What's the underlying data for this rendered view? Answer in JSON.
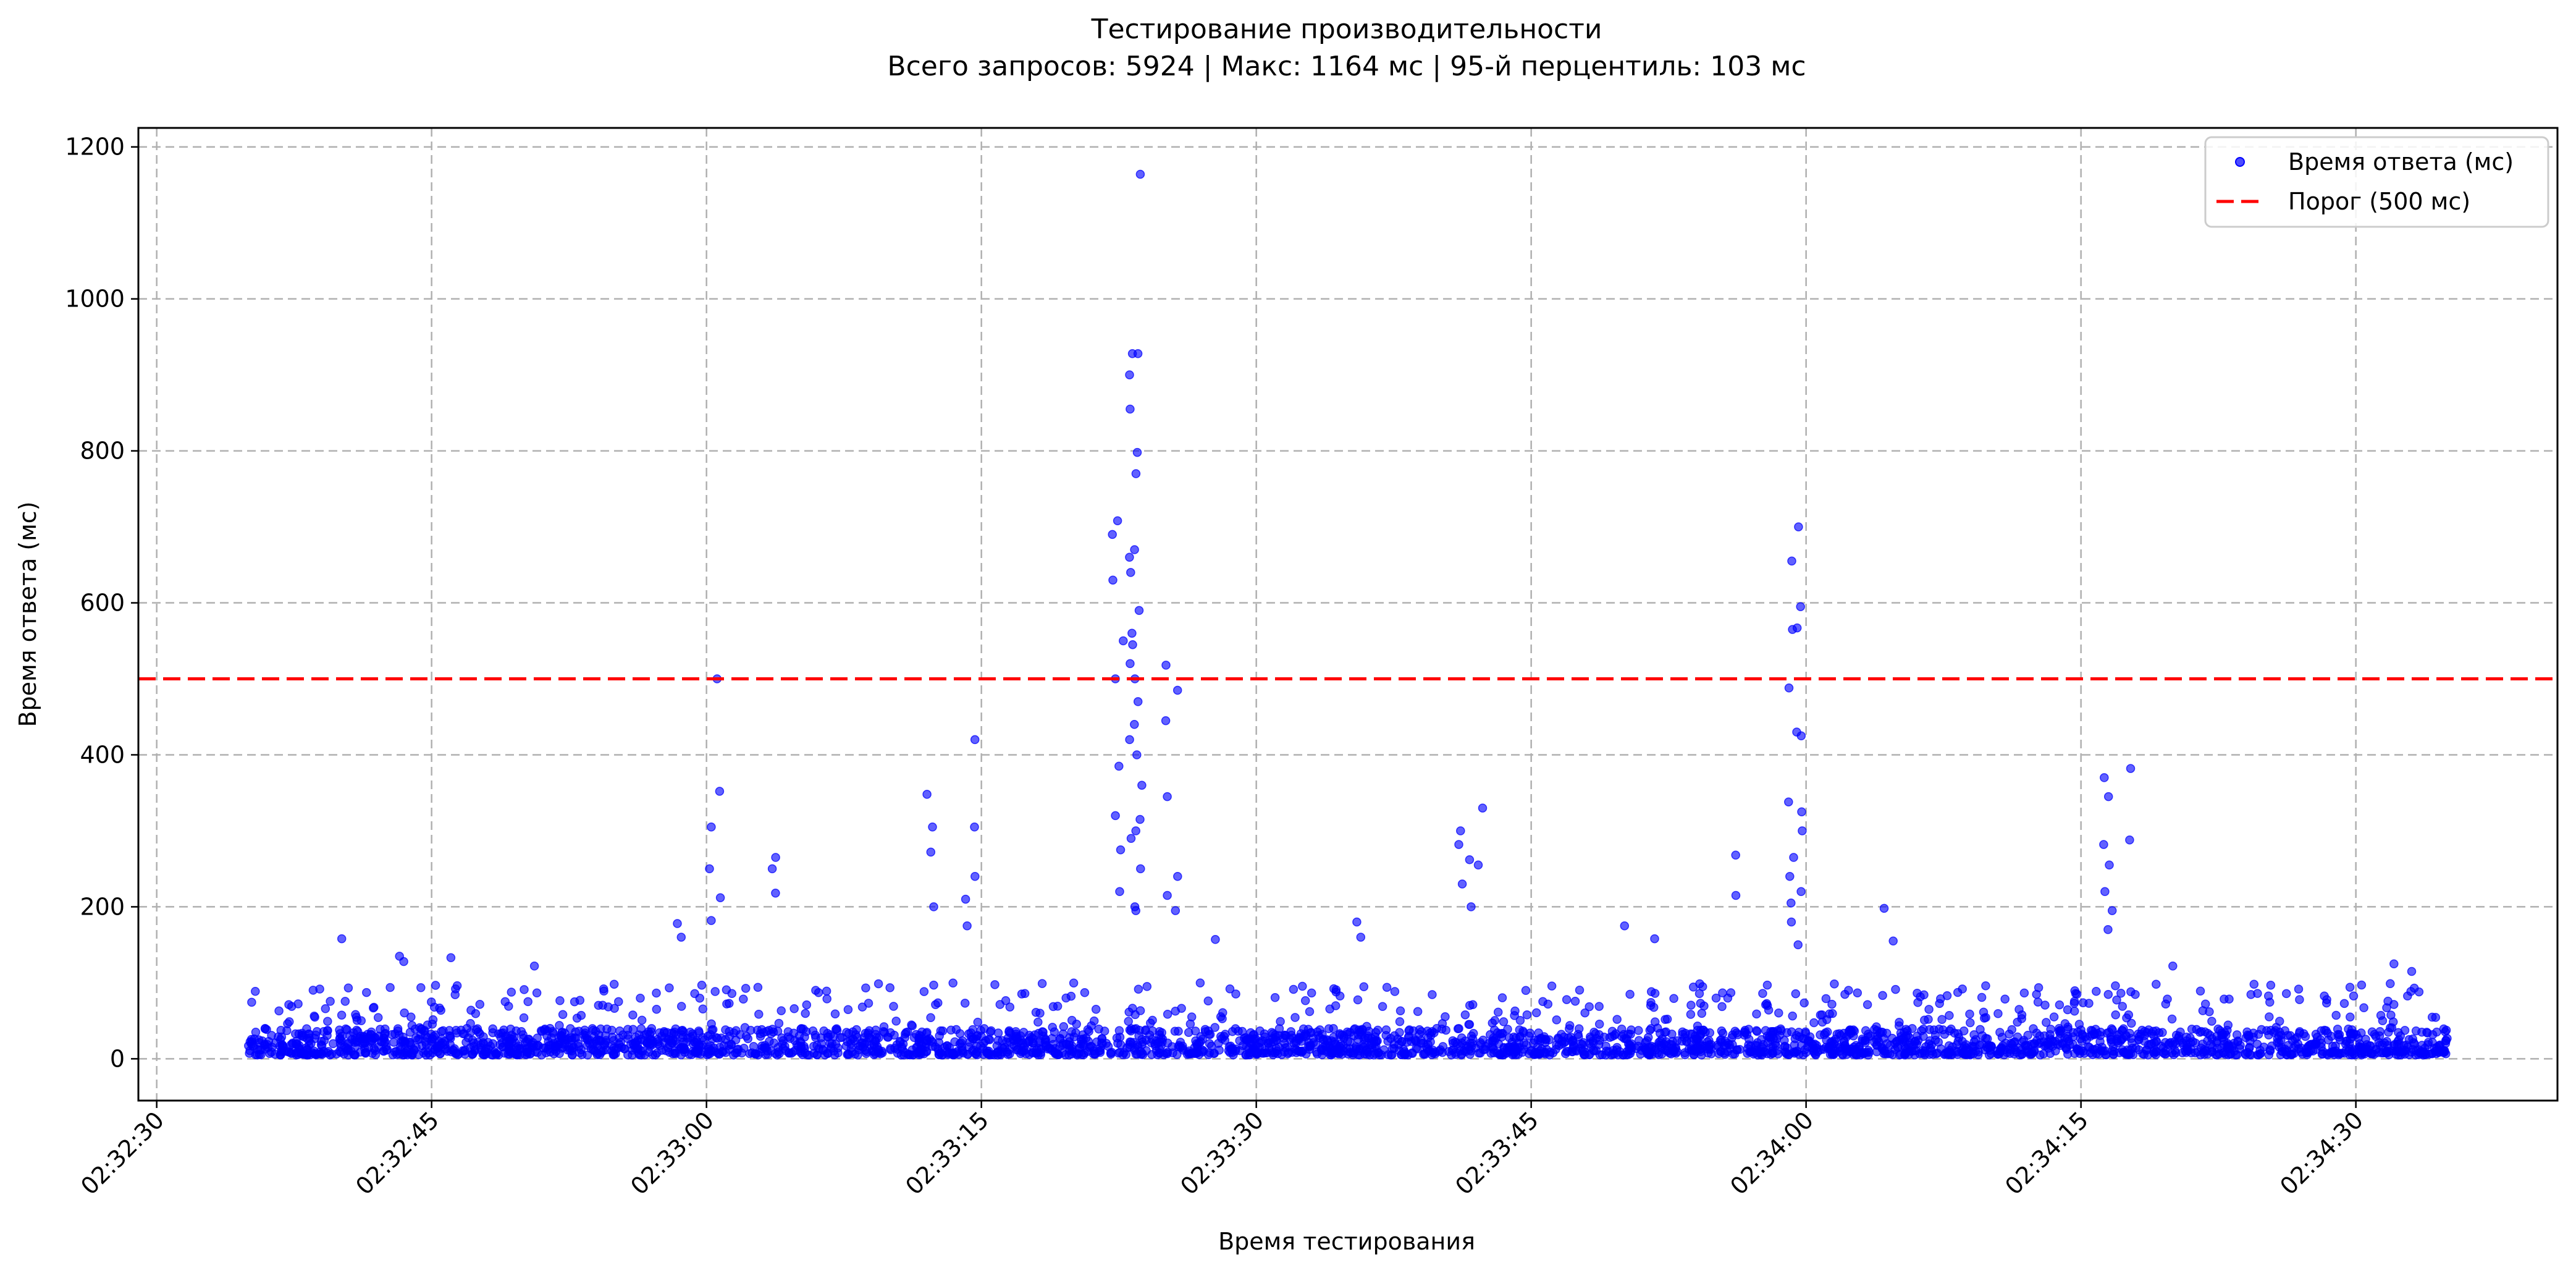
{
  "chart_data": {
    "type": "scatter",
    "title": "Тестирование производительности",
    "subtitle": "Всего запросов: 5924 | Макс: 1164 мс | 95-й перцентиль: 103 мс",
    "xlabel": "Время тестирования",
    "ylabel": "Время ответа (мс)",
    "x_ticks": [
      "02:32:30",
      "02:32:45",
      "02:33:00",
      "02:33:15",
      "02:33:30",
      "02:33:45",
      "02:34:00",
      "02:34:15",
      "02:34:30"
    ],
    "y_ticks": [
      0,
      200,
      400,
      600,
      800,
      1000,
      1200
    ],
    "xlim": [
      "02:32:29",
      "02:34:41"
    ],
    "ylim": [
      -55,
      1225
    ],
    "grid": true,
    "legend_position": "top-right",
    "series": [
      {
        "name": "Время ответа (мс)",
        "kind": "scatter",
        "color": "#0000ff",
        "x_range": [
          "02:32:35",
          "02:34:35"
        ],
        "baseline_ms": [
          5,
          40
        ],
        "outliers": [
          {
            "x": "02:32:40",
            "y": 158
          },
          {
            "x": "02:32:43",
            "y": 135
          },
          {
            "x": "02:32:43",
            "y": 128
          },
          {
            "x": "02:32:46",
            "y": 133
          },
          {
            "x": "02:32:50",
            "y": 122
          },
          {
            "x": "02:32:58",
            "y": 178
          },
          {
            "x": "02:32:58",
            "y": 160
          },
          {
            "x": "02:33:00",
            "y": 500
          },
          {
            "x": "02:33:00",
            "y": 352
          },
          {
            "x": "02:33:00",
            "y": 305
          },
          {
            "x": "02:33:00",
            "y": 250
          },
          {
            "x": "02:33:00",
            "y": 212
          },
          {
            "x": "02:33:00",
            "y": 182
          },
          {
            "x": "02:33:03",
            "y": 265
          },
          {
            "x": "02:33:03",
            "y": 250
          },
          {
            "x": "02:33:03",
            "y": 218
          },
          {
            "x": "02:33:12",
            "y": 348
          },
          {
            "x": "02:33:12",
            "y": 305
          },
          {
            "x": "02:33:12",
            "y": 272
          },
          {
            "x": "02:33:12",
            "y": 200
          },
          {
            "x": "02:33:14",
            "y": 420
          },
          {
            "x": "02:33:14",
            "y": 305
          },
          {
            "x": "02:33:14",
            "y": 240
          },
          {
            "x": "02:33:14",
            "y": 210
          },
          {
            "x": "02:33:14",
            "y": 175
          },
          {
            "x": "02:33:22",
            "y": 708
          },
          {
            "x": "02:33:22",
            "y": 690
          },
          {
            "x": "02:33:22",
            "y": 630
          },
          {
            "x": "02:33:22",
            "y": 550
          },
          {
            "x": "02:33:22",
            "y": 500
          },
          {
            "x": "02:33:22",
            "y": 385
          },
          {
            "x": "02:33:22",
            "y": 320
          },
          {
            "x": "02:33:22",
            "y": 275
          },
          {
            "x": "02:33:22",
            "y": 220
          },
          {
            "x": "02:33:23",
            "y": 928
          },
          {
            "x": "02:33:23",
            "y": 900
          },
          {
            "x": "02:33:23",
            "y": 798
          },
          {
            "x": "02:33:23",
            "y": 770
          },
          {
            "x": "02:33:23",
            "y": 670
          },
          {
            "x": "02:33:23",
            "y": 640
          },
          {
            "x": "02:33:23",
            "y": 590
          },
          {
            "x": "02:33:23",
            "y": 560
          },
          {
            "x": "02:33:23",
            "y": 520
          },
          {
            "x": "02:33:23",
            "y": 470
          },
          {
            "x": "02:33:23",
            "y": 440
          },
          {
            "x": "02:33:23",
            "y": 400
          },
          {
            "x": "02:33:23",
            "y": 360
          },
          {
            "x": "02:33:23",
            "y": 315
          },
          {
            "x": "02:33:23",
            "y": 290
          },
          {
            "x": "02:33:23",
            "y": 250
          },
          {
            "x": "02:33:23",
            "y": 195
          },
          {
            "x": "02:33:23",
            "y": 1164
          },
          {
            "x": "02:33:23",
            "y": 928
          },
          {
            "x": "02:33:23",
            "y": 855
          },
          {
            "x": "02:33:23",
            "y": 660
          },
          {
            "x": "02:33:23",
            "y": 545
          },
          {
            "x": "02:33:23",
            "y": 500
          },
          {
            "x": "02:33:23",
            "y": 420
          },
          {
            "x": "02:33:23",
            "y": 300
          },
          {
            "x": "02:33:23",
            "y": 200
          },
          {
            "x": "02:33:25",
            "y": 518
          },
          {
            "x": "02:33:25",
            "y": 485
          },
          {
            "x": "02:33:25",
            "y": 445
          },
          {
            "x": "02:33:25",
            "y": 345
          },
          {
            "x": "02:33:25",
            "y": 240
          },
          {
            "x": "02:33:25",
            "y": 215
          },
          {
            "x": "02:33:25",
            "y": 195
          },
          {
            "x": "02:33:27",
            "y": 157
          },
          {
            "x": "02:33:35",
            "y": 180
          },
          {
            "x": "02:33:35",
            "y": 160
          },
          {
            "x": "02:33:41",
            "y": 300
          },
          {
            "x": "02:33:41",
            "y": 282
          },
          {
            "x": "02:33:41",
            "y": 262
          },
          {
            "x": "02:33:41",
            "y": 230
          },
          {
            "x": "02:33:41",
            "y": 200
          },
          {
            "x": "02:33:42",
            "y": 330
          },
          {
            "x": "02:33:42",
            "y": 255
          },
          {
            "x": "02:33:50",
            "y": 175
          },
          {
            "x": "02:33:51",
            "y": 158
          },
          {
            "x": "02:33:56",
            "y": 268
          },
          {
            "x": "02:33:56",
            "y": 215
          },
          {
            "x": "02:33:59",
            "y": 700
          },
          {
            "x": "02:33:59",
            "y": 655
          },
          {
            "x": "02:33:59",
            "y": 595
          },
          {
            "x": "02:33:59",
            "y": 567
          },
          {
            "x": "02:33:59",
            "y": 565
          },
          {
            "x": "02:33:59",
            "y": 488
          },
          {
            "x": "02:33:59",
            "y": 430
          },
          {
            "x": "02:33:59",
            "y": 425
          },
          {
            "x": "02:33:59",
            "y": 338
          },
          {
            "x": "02:33:59",
            "y": 325
          },
          {
            "x": "02:33:59",
            "y": 300
          },
          {
            "x": "02:33:59",
            "y": 265
          },
          {
            "x": "02:33:59",
            "y": 240
          },
          {
            "x": "02:33:59",
            "y": 220
          },
          {
            "x": "02:33:59",
            "y": 205
          },
          {
            "x": "02:33:59",
            "y": 180
          },
          {
            "x": "02:33:59",
            "y": 150
          },
          {
            "x": "02:34:04",
            "y": 198
          },
          {
            "x": "02:34:04",
            "y": 155
          },
          {
            "x": "02:34:16",
            "y": 370
          },
          {
            "x": "02:34:16",
            "y": 345
          },
          {
            "x": "02:34:16",
            "y": 282
          },
          {
            "x": "02:34:16",
            "y": 255
          },
          {
            "x": "02:34:16",
            "y": 220
          },
          {
            "x": "02:34:16",
            "y": 195
          },
          {
            "x": "02:34:16",
            "y": 170
          },
          {
            "x": "02:34:17",
            "y": 382
          },
          {
            "x": "02:34:17",
            "y": 288
          },
          {
            "x": "02:34:20",
            "y": 122
          },
          {
            "x": "02:34:32",
            "y": 125
          },
          {
            "x": "02:34:33",
            "y": 115
          }
        ]
      },
      {
        "name": "Порог (500 мс)",
        "kind": "hline",
        "y": 500,
        "color": "#ff0000"
      }
    ]
  }
}
